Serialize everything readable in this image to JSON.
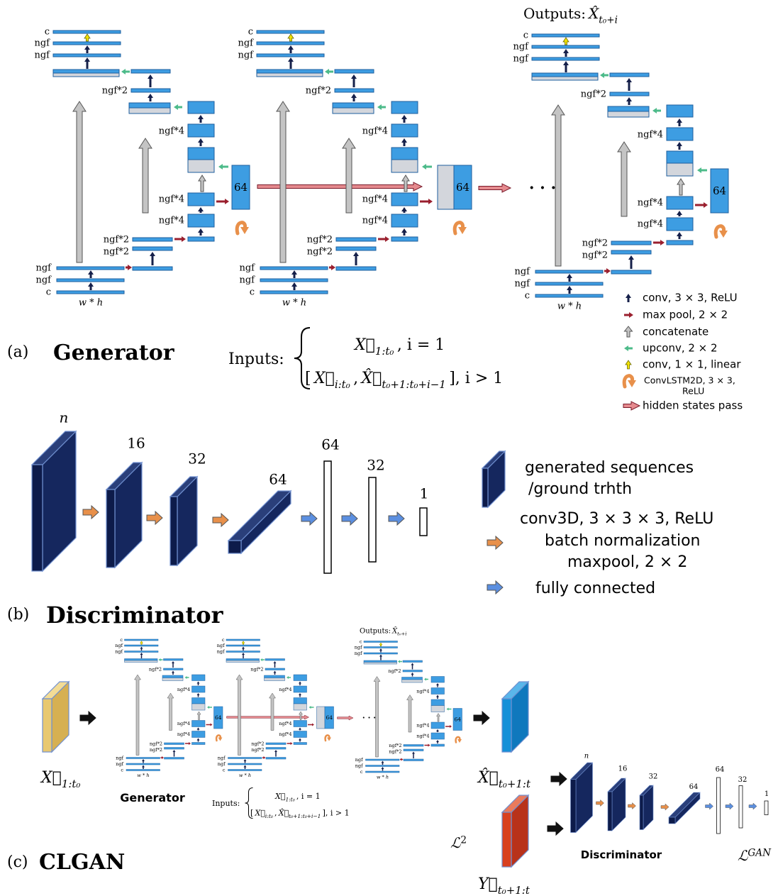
{
  "panel_a": {
    "label": "(a)",
    "title": "Generator",
    "outputs": [
      {
        "text": "Outputs:"
      },
      {
        "text": "X̂",
        "italic": true
      },
      {
        "text": "t₀+i",
        "sub": true,
        "italic": true
      }
    ],
    "unet": {
      "dec1": [
        "c",
        "ngf",
        "ngf"
      ],
      "dec2": "ngf*2",
      "dec3": "ngf*4",
      "bottleneck": "64",
      "enc3": [
        "ngf*4",
        "ngf*4"
      ],
      "enc2": [
        "ngf*2",
        "ngf*2"
      ],
      "enc1": [
        "ngf",
        "ngf",
        "c"
      ],
      "size": "w * h"
    },
    "ellipsis": "· · ·",
    "inputs": {
      "label": "Inputs:",
      "case1": [
        {
          "text": "X⃗",
          "italic": true
        },
        {
          "text": "1:t₀",
          "sub": true,
          "italic": true
        },
        {
          "text": ",  i = 1"
        }
      ],
      "case2": [
        {
          "text": "["
        },
        {
          "text": "X⃗",
          "italic": true
        },
        {
          "text": "i:t₀",
          "sub": true,
          "italic": true
        },
        {
          "text": ","
        },
        {
          "text": "X̂⃗",
          "italic": true
        },
        {
          "text": "t₀+1:t₀+i−1",
          "sub": true,
          "italic": true
        },
        {
          "text": "], i > 1"
        }
      ]
    },
    "legend": [
      {
        "icon": "conv",
        "text": [
          "conv, 3 × 3, ReLU"
        ]
      },
      {
        "icon": "maxpool",
        "text": [
          "max pool, 2 × 2"
        ]
      },
      {
        "icon": "concat",
        "text": [
          "concatenate"
        ]
      },
      {
        "icon": "upconv",
        "text": [
          "upconv, 2 × 2"
        ]
      },
      {
        "icon": "conv1x1",
        "text": [
          "conv, 1 × 1, linear"
        ]
      },
      {
        "icon": "convlstm",
        "text": [
          "ConvLSTM2D, 3 × 3,",
          "ReLU"
        ]
      },
      {
        "icon": "hidden",
        "text": [
          "hidden states pass"
        ]
      }
    ]
  },
  "panel_b": {
    "label": "(b)",
    "title": "Discriminator",
    "layers": [
      {
        "kind": "slab",
        "label": "n"
      },
      {
        "kind": "slab",
        "label": "16"
      },
      {
        "kind": "slab",
        "label": "32"
      },
      {
        "kind": "bar3d",
        "label": "64"
      },
      {
        "kind": "dense",
        "label": "64"
      },
      {
        "kind": "dense",
        "label": "32"
      },
      {
        "kind": "dense",
        "label": "1"
      }
    ],
    "legend": {
      "sequences": [
        "generated sequences",
        "/ground trhth"
      ],
      "conv": [
        "conv3D, 3 × 3 × 3, ReLU",
        "batch normalization",
        "maxpool, 2 × 2"
      ],
      "dense": [
        "fully connected"
      ]
    }
  },
  "panel_c": {
    "label": "(c)",
    "title": "CLGAN",
    "input": [
      {
        "text": "X⃗",
        "italic": true
      },
      {
        "text": "1:t₀",
        "sub": true,
        "italic": true
      }
    ],
    "generator": "Generator",
    "prediction": [
      {
        "text": "X̂⃗",
        "italic": true
      },
      {
        "text": "t₀+1:t",
        "sub": true,
        "italic": true
      }
    ],
    "target": [
      {
        "text": "Y⃗",
        "italic": true
      },
      {
        "text": "t₀+1:t",
        "sub": true,
        "italic": true
      }
    ],
    "loss_l2": [
      {
        "text": "ℒ",
        "italic": true
      },
      {
        "text": "2",
        "sup": true
      }
    ],
    "discriminator": "Discriminator",
    "loss_gan": [
      {
        "text": "ℒ",
        "italic": true
      },
      {
        "text": "GAN",
        "sup": true,
        "italic": true
      }
    ]
  }
}
